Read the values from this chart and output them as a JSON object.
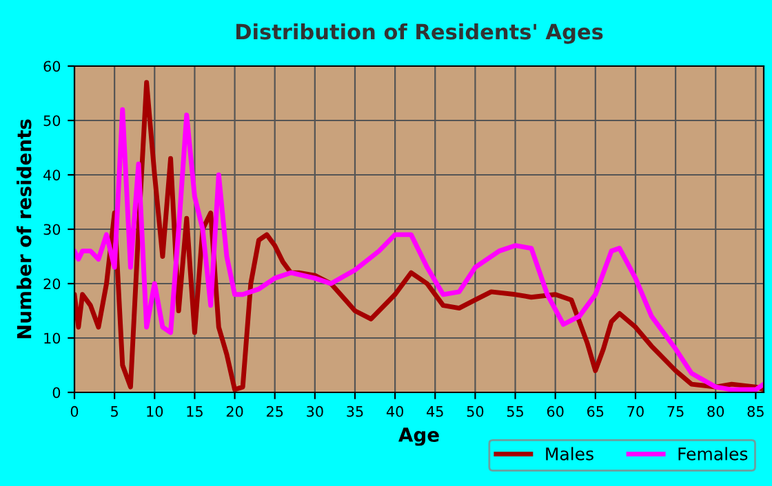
{
  "chart_data": {
    "type": "line",
    "title": "Distribution of Residents' Ages",
    "xlabel": "Age",
    "ylabel": "Number of residents",
    "xlim": [
      0,
      86
    ],
    "xticks": [
      0,
      5,
      10,
      15,
      20,
      25,
      30,
      35,
      40,
      45,
      50,
      55,
      60,
      65,
      70,
      75,
      80,
      85
    ],
    "ylim": [
      0,
      60
    ],
    "yticks": [
      0,
      10,
      20,
      30,
      40,
      50,
      60
    ],
    "grid": true,
    "legend": "bottom right",
    "series": [
      {
        "name": "Males",
        "color": "#a50000",
        "x": [
          0,
          0.5,
          1,
          2,
          3,
          4,
          5,
          6,
          7,
          8,
          9,
          10,
          11,
          12,
          13,
          14,
          15,
          16,
          17,
          18,
          19,
          20,
          21,
          22,
          23,
          24,
          25,
          26,
          27,
          28,
          30,
          32,
          35,
          37,
          40,
          42,
          44,
          46,
          48,
          50,
          52,
          55,
          57,
          60,
          62,
          64,
          65,
          66,
          67,
          68,
          70,
          72,
          75,
          77,
          80,
          82,
          85,
          86
        ],
        "values": [
          18,
          12,
          18,
          16,
          12,
          20,
          33,
          5,
          1,
          30,
          57,
          40,
          25,
          43,
          15,
          32,
          11,
          30,
          33,
          12,
          7,
          0.5,
          1,
          20,
          28,
          29,
          27,
          24,
          22,
          22,
          21.5,
          20,
          15,
          13.5,
          18,
          22,
          20,
          16,
          15.5,
          17,
          18.5,
          18,
          17.5,
          18,
          17,
          9,
          4,
          8,
          13,
          14.5,
          12,
          8.5,
          4,
          1.5,
          1,
          1.5,
          1,
          0.5
        ]
      },
      {
        "name": "Females",
        "color": "#ff00ff",
        "x": [
          0,
          0.5,
          1,
          2,
          3,
          4,
          5,
          6,
          7,
          8,
          9,
          10,
          11,
          12,
          13,
          14,
          15,
          16,
          17,
          18,
          19,
          20,
          21,
          23,
          25,
          27,
          30,
          32,
          35,
          38,
          40,
          42,
          44,
          46,
          48,
          50,
          53,
          55,
          57,
          59,
          61,
          63,
          65,
          67,
          68,
          70,
          72,
          75,
          77,
          80,
          82,
          85,
          86
        ],
        "values": [
          26,
          24.5,
          26,
          26,
          24.5,
          29,
          23,
          52,
          23,
          42,
          12,
          20,
          12,
          11,
          30,
          51,
          36,
          30,
          16,
          40,
          25,
          18,
          18,
          19,
          21,
          22,
          21,
          20,
          22.5,
          26,
          29,
          29,
          23,
          18,
          18.5,
          23,
          26,
          27,
          26.5,
          18,
          12.5,
          14,
          18,
          26,
          26.5,
          21,
          14,
          8,
          3.5,
          1,
          0.5,
          0.5,
          1.5
        ]
      }
    ]
  }
}
